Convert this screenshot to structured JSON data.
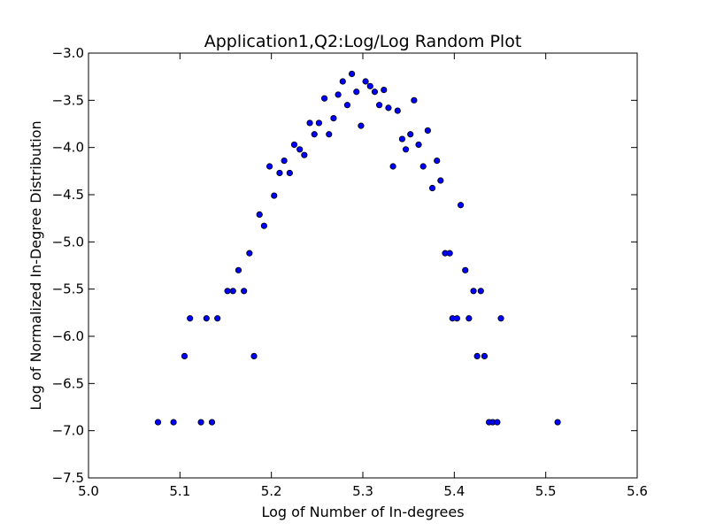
{
  "chart_data": {
    "type": "scatter",
    "title": "Application1,Q2:Log/Log Random Plot",
    "xlabel": "Log of Number of In-degrees",
    "ylabel": "Log of Normalized In-Degree Distribution",
    "xlim": [
      5.0,
      5.6
    ],
    "ylim": [
      -7.5,
      -3.0
    ],
    "xticks": [
      5.0,
      5.1,
      5.2,
      5.3,
      5.4,
      5.5,
      5.6
    ],
    "xtick_labels": [
      "5.0",
      "5.1",
      "5.2",
      "5.3",
      "5.4",
      "5.5",
      "5.6"
    ],
    "yticks": [
      -3.0,
      -3.5,
      -4.0,
      -4.5,
      -5.0,
      -5.5,
      -6.0,
      -6.5,
      -7.0,
      -7.5
    ],
    "ytick_labels": [
      "−3.0",
      "−3.5",
      "−4.0",
      "−4.5",
      "−5.0",
      "−5.5",
      "−6.0",
      "−6.5",
      "−7.0",
      "−7.5"
    ],
    "grid": false,
    "marker_color": "#0000ff",
    "points": [
      [
        5.076,
        -6.91
      ],
      [
        5.093,
        -6.91
      ],
      [
        5.105,
        -6.21
      ],
      [
        5.111,
        -5.81
      ],
      [
        5.123,
        -6.91
      ],
      [
        5.129,
        -5.81
      ],
      [
        5.135,
        -6.91
      ],
      [
        5.141,
        -5.81
      ],
      [
        5.152,
        -5.52
      ],
      [
        5.158,
        -5.52
      ],
      [
        5.164,
        -5.3
      ],
      [
        5.17,
        -5.52
      ],
      [
        5.176,
        -5.12
      ],
      [
        5.181,
        -6.21
      ],
      [
        5.187,
        -4.71
      ],
      [
        5.192,
        -4.83
      ],
      [
        5.198,
        -4.2
      ],
      [
        5.203,
        -4.51
      ],
      [
        5.209,
        -4.27
      ],
      [
        5.214,
        -4.14
      ],
      [
        5.22,
        -4.27
      ],
      [
        5.225,
        -3.97
      ],
      [
        5.231,
        -4.02
      ],
      [
        5.236,
        -4.08
      ],
      [
        5.242,
        -3.74
      ],
      [
        5.247,
        -3.86
      ],
      [
        5.252,
        -3.74
      ],
      [
        5.258,
        -3.48
      ],
      [
        5.263,
        -3.86
      ],
      [
        5.268,
        -3.69
      ],
      [
        5.273,
        -3.44
      ],
      [
        5.278,
        -3.3
      ],
      [
        5.283,
        -3.55
      ],
      [
        5.288,
        -3.22
      ],
      [
        5.293,
        -3.41
      ],
      [
        5.298,
        -3.77
      ],
      [
        5.303,
        -3.3
      ],
      [
        5.308,
        -3.35
      ],
      [
        5.313,
        -3.41
      ],
      [
        5.318,
        -3.55
      ],
      [
        5.323,
        -3.39
      ],
      [
        5.328,
        -3.58
      ],
      [
        5.333,
        -4.2
      ],
      [
        5.338,
        -3.61
      ],
      [
        5.343,
        -3.91
      ],
      [
        5.347,
        -4.02
      ],
      [
        5.352,
        -3.86
      ],
      [
        5.356,
        -3.5
      ],
      [
        5.361,
        -3.97
      ],
      [
        5.366,
        -4.2
      ],
      [
        5.371,
        -3.82
      ],
      [
        5.376,
        -4.43
      ],
      [
        5.381,
        -4.14
      ],
      [
        5.385,
        -4.35
      ],
      [
        5.39,
        -5.12
      ],
      [
        5.395,
        -5.12
      ],
      [
        5.398,
        -5.81
      ],
      [
        5.403,
        -5.81
      ],
      [
        5.407,
        -4.61
      ],
      [
        5.412,
        -5.3
      ],
      [
        5.416,
        -5.81
      ],
      [
        5.421,
        -5.52
      ],
      [
        5.425,
        -6.21
      ],
      [
        5.429,
        -5.52
      ],
      [
        5.433,
        -6.21
      ],
      [
        5.438,
        -6.91
      ],
      [
        5.442,
        -6.91
      ],
      [
        5.447,
        -6.91
      ],
      [
        5.451,
        -5.81
      ],
      [
        5.513,
        -6.91
      ]
    ]
  }
}
